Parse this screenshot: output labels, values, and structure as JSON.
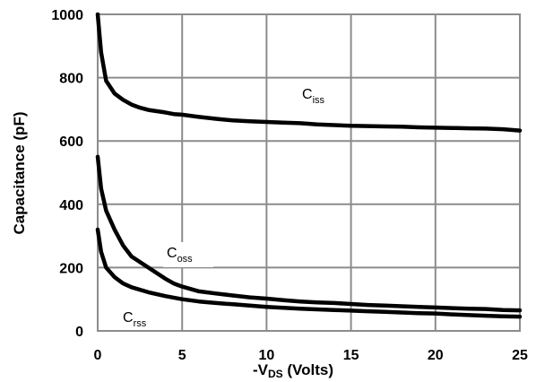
{
  "chart_data": {
    "type": "line",
    "xlabel": "-V",
    "xlabel_sub": "DS",
    "xlabel_suffix": " (Volts)",
    "ylabel": "Capacitance (pF)",
    "xlim": [
      0,
      25
    ],
    "ylim": [
      0,
      1000
    ],
    "x_ticks": [
      0,
      5,
      10,
      15,
      20,
      25
    ],
    "y_ticks": [
      0,
      200,
      400,
      600,
      800,
      1000
    ],
    "grid": true,
    "series": [
      {
        "name": "Ciss",
        "label_main": "C",
        "label_sub": "iss",
        "points": [
          [
            0,
            1000
          ],
          [
            0.2,
            880
          ],
          [
            0.5,
            790
          ],
          [
            1,
            750
          ],
          [
            1.5,
            730
          ],
          [
            2,
            715
          ],
          [
            2.5,
            705
          ],
          [
            3,
            698
          ],
          [
            4,
            690
          ],
          [
            4.5,
            685
          ],
          [
            5,
            683
          ],
          [
            6,
            676
          ],
          [
            7,
            670
          ],
          [
            8,
            665
          ],
          [
            9,
            662
          ],
          [
            10,
            660
          ],
          [
            11,
            658
          ],
          [
            12,
            656
          ],
          [
            13,
            652
          ],
          [
            14,
            650
          ],
          [
            15,
            648
          ],
          [
            16,
            647
          ],
          [
            17,
            646
          ],
          [
            18,
            645
          ],
          [
            19,
            643
          ],
          [
            20,
            642
          ],
          [
            21,
            641
          ],
          [
            22,
            640
          ],
          [
            23,
            639
          ],
          [
            24,
            637
          ],
          [
            25,
            633
          ]
        ]
      },
      {
        "name": "Coss",
        "label_main": "C",
        "label_sub": "oss",
        "points": [
          [
            0,
            550
          ],
          [
            0.2,
            450
          ],
          [
            0.5,
            380
          ],
          [
            1,
            320
          ],
          [
            1.5,
            270
          ],
          [
            2,
            235
          ],
          [
            3,
            200
          ],
          [
            4,
            165
          ],
          [
            4.5,
            150
          ],
          [
            5,
            140
          ],
          [
            6,
            125
          ],
          [
            7,
            118
          ],
          [
            8,
            112
          ],
          [
            9,
            106
          ],
          [
            10,
            102
          ],
          [
            11,
            97
          ],
          [
            12,
            93
          ],
          [
            13,
            90
          ],
          [
            14,
            88
          ],
          [
            15,
            85
          ],
          [
            16,
            82
          ],
          [
            17,
            80
          ],
          [
            18,
            78
          ],
          [
            19,
            76
          ],
          [
            20,
            74
          ],
          [
            21,
            72
          ],
          [
            22,
            70
          ],
          [
            23,
            69
          ],
          [
            24,
            66
          ],
          [
            25,
            65
          ]
        ]
      },
      {
        "name": "Crss",
        "label_main": "C",
        "label_sub": "rss",
        "points": [
          [
            0,
            320
          ],
          [
            0.2,
            250
          ],
          [
            0.5,
            200
          ],
          [
            1,
            170
          ],
          [
            1.5,
            150
          ],
          [
            2,
            138
          ],
          [
            3,
            122
          ],
          [
            4,
            110
          ],
          [
            5,
            100
          ],
          [
            6,
            93
          ],
          [
            7,
            88
          ],
          [
            8,
            84
          ],
          [
            9,
            80
          ],
          [
            10,
            76
          ],
          [
            11,
            73
          ],
          [
            12,
            70
          ],
          [
            13,
            68
          ],
          [
            14,
            66
          ],
          [
            15,
            64
          ],
          [
            16,
            62
          ],
          [
            17,
            60
          ],
          [
            18,
            58
          ],
          [
            19,
            56
          ],
          [
            20,
            55
          ],
          [
            21,
            52
          ],
          [
            22,
            50
          ],
          [
            23,
            48
          ],
          [
            24,
            46
          ],
          [
            25,
            45
          ]
        ]
      }
    ]
  }
}
